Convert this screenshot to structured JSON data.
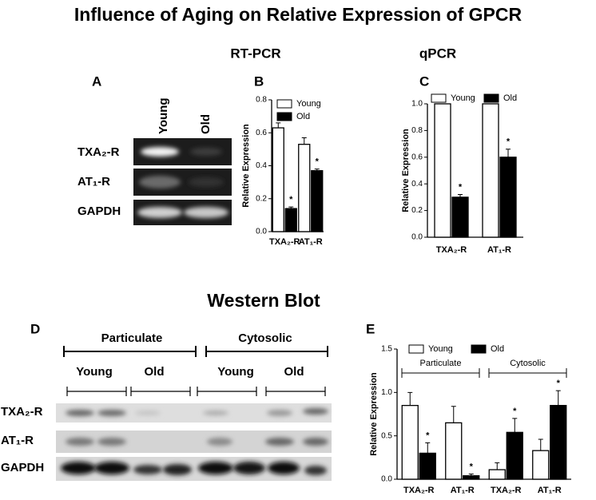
{
  "figure": {
    "title": "Influence of Aging on Relative Expression of GPCR",
    "rtpcr_heading": "RT-PCR",
    "qpcr_heading": "qPCR",
    "western_heading": "Western Blot",
    "panel_labels": [
      "A",
      "B",
      "C",
      "D",
      "E"
    ],
    "gel": {
      "lanes": [
        "Young",
        "Old"
      ],
      "rows": [
        "TXA₂-R",
        "AT₁-R",
        "GAPDH"
      ]
    },
    "blot": {
      "fractions": [
        "Particulate",
        "Cytosolic"
      ],
      "lanes": [
        "Young",
        "Old",
        "Young",
        "Old"
      ],
      "rows": [
        "TXA₂-R",
        "AT₁-R",
        "GAPDH"
      ]
    }
  },
  "chart_data": [
    {
      "type": "bar",
      "y_label": "Relative Expression",
      "categories": [
        "TXA₂-R",
        "AT₁-R"
      ],
      "series": [
        {
          "name": "Young",
          "color": "#ffffff",
          "values": [
            0.63,
            0.53
          ],
          "errors": [
            0.03,
            0.04
          ],
          "significance": [
            null,
            null
          ]
        },
        {
          "name": "Old",
          "color": "#000000",
          "values": [
            0.14,
            0.37
          ],
          "errors": [
            0.01,
            0.01
          ],
          "significance": [
            "*",
            "*"
          ]
        }
      ],
      "ylim": [
        0,
        0.8
      ],
      "yticks": [
        {
          "value": 0,
          "label": "0.0"
        },
        {
          "value": 0.2,
          "label": "0.2"
        },
        {
          "value": 0.4,
          "label": "0.4"
        },
        {
          "value": 0.6,
          "label": "0.6"
        },
        {
          "value": 0.8,
          "label": "0.8"
        }
      ]
    },
    {
      "type": "bar",
      "y_label": "Relative Expression",
      "categories": [
        "TXA₂-R",
        "AT₁-R"
      ],
      "series": [
        {
          "name": "Young",
          "color": "#ffffff",
          "values": [
            1.0,
            1.0
          ],
          "errors": [
            0,
            0
          ],
          "significance": [
            null,
            null
          ]
        },
        {
          "name": "Old",
          "color": "#000000",
          "values": [
            0.3,
            0.6
          ],
          "errors": [
            0.02,
            0.06
          ],
          "significance": [
            "*",
            "*"
          ]
        }
      ],
      "ylim": [
        0,
        1.0
      ],
      "yticks": [
        {
          "value": 0,
          "label": "0.0"
        },
        {
          "value": 0.2,
          "label": "0.2"
        },
        {
          "value": 0.4,
          "label": "0.4"
        },
        {
          "value": 0.6,
          "label": "0.6"
        },
        {
          "value": 0.8,
          "label": "0.8"
        },
        {
          "value": 1.0,
          "label": "1.0"
        }
      ]
    },
    {
      "type": "bar",
      "y_label": "Relative Expression",
      "categories": [
        "TXA₂-R",
        "AT₁-R",
        "TXA₂-R",
        "AT₁-R"
      ],
      "group_labels": [
        "Particulate",
        "Cytosolic"
      ],
      "series": [
        {
          "name": "Young",
          "color": "#ffffff",
          "values": [
            0.85,
            0.65,
            0.11,
            0.33
          ],
          "errors": [
            0.15,
            0.19,
            0.08,
            0.13
          ],
          "significance": [
            null,
            null,
            null,
            null
          ]
        },
        {
          "name": "Old",
          "color": "#000000",
          "values": [
            0.3,
            0.04,
            0.54,
            0.85
          ],
          "errors": [
            0.12,
            0.02,
            0.16,
            0.17
          ],
          "significance": [
            "*",
            "*",
            "*",
            "*"
          ]
        }
      ],
      "ylim": [
        0,
        1.5
      ],
      "yticks": [
        {
          "value": 0,
          "label": "0.0"
        },
        {
          "value": 0.5,
          "label": "0.5"
        },
        {
          "value": 1.0,
          "label": "1.0"
        },
        {
          "value": 1.5,
          "label": "1.5"
        }
      ]
    }
  ]
}
